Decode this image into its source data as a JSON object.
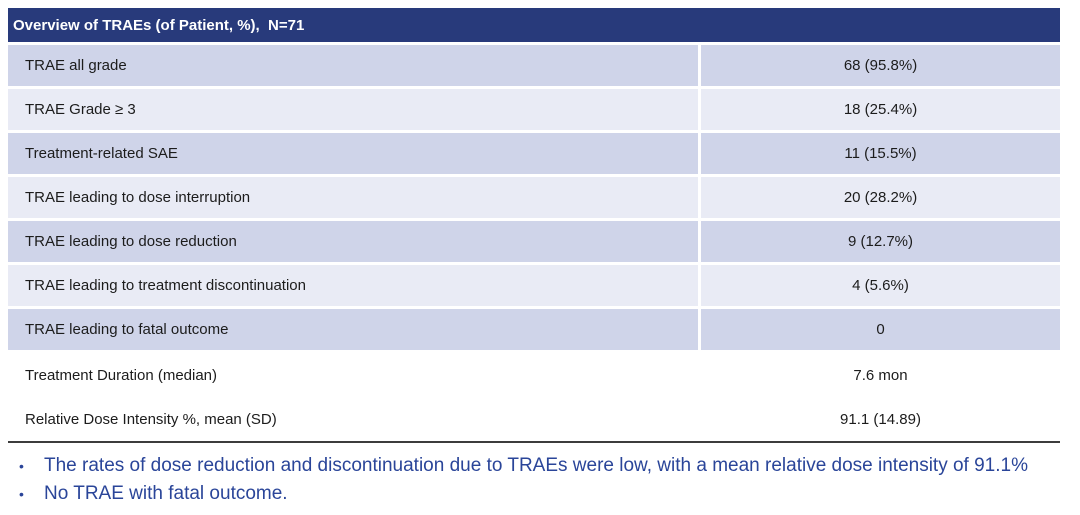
{
  "table": {
    "title": "Overview of TRAEs (of Patient, %),  N=71",
    "rows": [
      {
        "label": "TRAE all grade",
        "value": "68 (95.8%)"
      },
      {
        "label": "TRAE Grade ≥ 3",
        "value": "18 (25.4%)"
      },
      {
        "label": "Treatment-related SAE",
        "value": "11 (15.5%)"
      },
      {
        "label": "TRAE leading to dose interruption",
        "value": "20 (28.2%)"
      },
      {
        "label": "TRAE leading to dose reduction",
        "value": "9 (12.7%)"
      },
      {
        "label": "TRAE leading to treatment discontinuation",
        "value": "4 (5.6%)"
      },
      {
        "label": "TRAE leading to fatal outcome",
        "value": "0"
      }
    ],
    "summary_rows": [
      {
        "label": "Treatment Duration (median)",
        "value": "7.6 mon"
      },
      {
        "label": "Relative Dose Intensity %, mean (SD)",
        "value": "91.1 (14.89)"
      }
    ]
  },
  "notes": {
    "bullet_char": "•",
    "bullets": [
      "The rates of dose reduction and discontinuation due to TRAEs were low, with a mean relative dose intensity of 91.1%",
      "No TRAE with fatal outcome."
    ]
  },
  "colors": {
    "header_bg": "#283a7b",
    "row_dark": "#cfd4e9",
    "row_light": "#e9ebf5",
    "note_text": "#2a4599",
    "rule": "#3c3c3c"
  }
}
